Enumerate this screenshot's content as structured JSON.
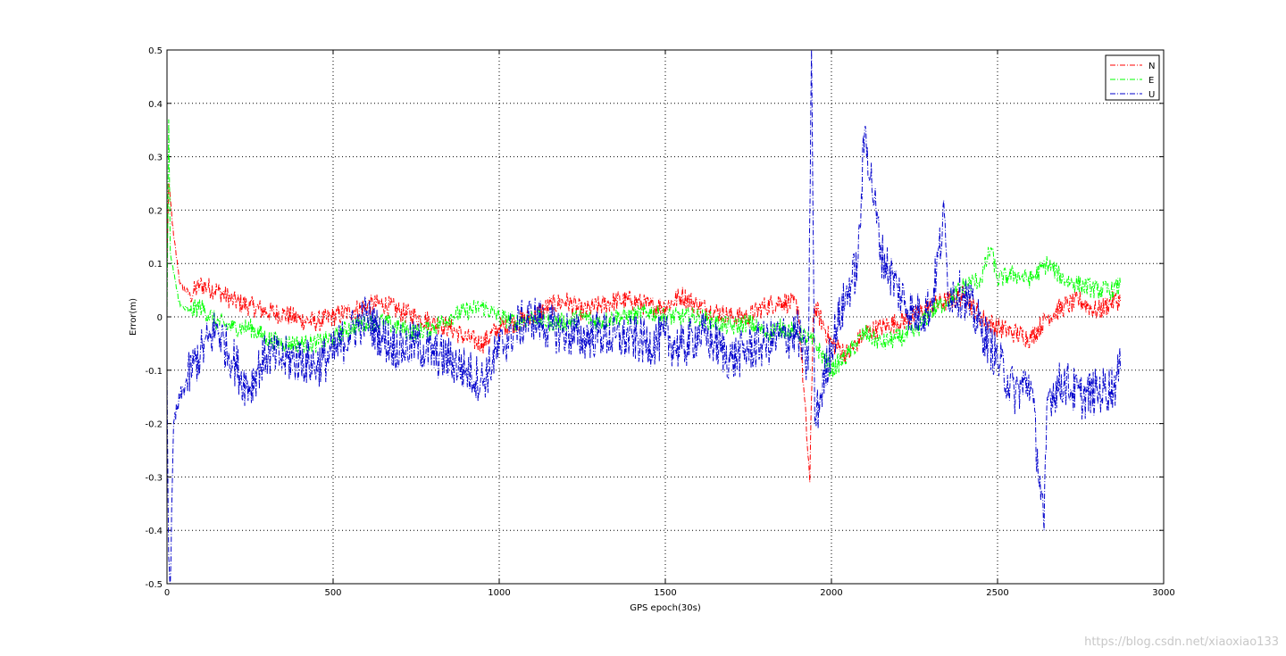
{
  "chart_data": {
    "type": "line",
    "title": "",
    "xlabel": "GPS epoch(30s)",
    "ylabel": "Error(m)",
    "xlim": [
      0,
      3000
    ],
    "ylim": [
      -0.5,
      0.5
    ],
    "xticks": [
      0,
      500,
      1000,
      1500,
      2000,
      2500,
      3000
    ],
    "yticks": [
      0.5,
      0.4,
      0.3,
      0.2,
      0.1,
      0,
      -0.1,
      -0.2,
      -0.3,
      -0.4,
      -0.5
    ],
    "ytick_labels": [
      "0.5",
      "0.4",
      "0.3",
      "0.2",
      "0.1",
      "0",
      "-0.1",
      "-0.2",
      "-0.3",
      "-0.4",
      "-0.5"
    ],
    "grid": true,
    "legend_position": "top-right",
    "line_style": "dash-dot",
    "series": [
      {
        "name": "N",
        "color": "#ff0000",
        "x": [
          0,
          5,
          10,
          20,
          40,
          70,
          100,
          150,
          200,
          250,
          300,
          350,
          400,
          450,
          500,
          550,
          600,
          650,
          700,
          750,
          800,
          850,
          900,
          950,
          1000,
          1050,
          1100,
          1150,
          1200,
          1250,
          1300,
          1350,
          1400,
          1450,
          1500,
          1550,
          1600,
          1650,
          1700,
          1750,
          1800,
          1850,
          1900,
          1935,
          1945,
          1950,
          2000,
          2050,
          2100,
          2150,
          2200,
          2250,
          2300,
          2350,
          2400,
          2450,
          2500,
          2550,
          2600,
          2650,
          2700,
          2750,
          2800,
          2850,
          2870
        ],
        "y": [
          0.1,
          0.25,
          0.22,
          0.15,
          0.06,
          0.04,
          0.06,
          0.05,
          0.03,
          0.02,
          0.01,
          0.005,
          -0.005,
          -0.01,
          0.0,
          0.01,
          0.02,
          0.025,
          0.01,
          0.0,
          -0.01,
          -0.02,
          -0.04,
          -0.05,
          -0.02,
          -0.01,
          0.0,
          0.02,
          0.03,
          0.01,
          0.02,
          0.03,
          0.03,
          0.02,
          0.02,
          0.04,
          0.02,
          0.01,
          0.0,
          0.0,
          0.02,
          0.03,
          0.02,
          -0.31,
          0.0,
          0.02,
          -0.05,
          -0.07,
          -0.03,
          -0.02,
          -0.01,
          0.0,
          0.02,
          0.03,
          0.04,
          0.0,
          -0.02,
          -0.03,
          -0.04,
          0.0,
          0.02,
          0.03,
          0.01,
          0.03,
          0.03
        ]
      },
      {
        "name": "E",
        "color": "#00ff00",
        "x": [
          0,
          5,
          10,
          20,
          40,
          70,
          100,
          150,
          200,
          250,
          300,
          350,
          400,
          450,
          500,
          550,
          600,
          650,
          700,
          750,
          800,
          850,
          900,
          950,
          1000,
          1050,
          1100,
          1150,
          1200,
          1250,
          1300,
          1350,
          1400,
          1450,
          1500,
          1550,
          1600,
          1650,
          1700,
          1750,
          1800,
          1850,
          1900,
          1950,
          2000,
          2050,
          2100,
          2150,
          2200,
          2250,
          2300,
          2350,
          2400,
          2450,
          2480,
          2500,
          2550,
          2600,
          2650,
          2700,
          2750,
          2800,
          2850,
          2870
        ],
        "y": [
          0.0,
          0.37,
          0.12,
          0.08,
          0.02,
          0.01,
          0.02,
          -0.01,
          -0.02,
          -0.02,
          -0.04,
          -0.05,
          -0.05,
          -0.05,
          -0.04,
          -0.02,
          -0.01,
          -0.01,
          -0.02,
          -0.03,
          -0.02,
          0.0,
          0.01,
          0.02,
          0.0,
          -0.01,
          0.0,
          -0.01,
          -0.01,
          0.0,
          -0.01,
          0.0,
          0.0,
          0.01,
          0.0,
          0.0,
          0.0,
          -0.01,
          -0.02,
          -0.01,
          -0.03,
          -0.02,
          -0.03,
          -0.05,
          -0.1,
          -0.07,
          -0.03,
          -0.05,
          -0.04,
          -0.03,
          0.01,
          0.03,
          0.06,
          0.07,
          0.13,
          0.07,
          0.08,
          0.07,
          0.1,
          0.07,
          0.06,
          0.05,
          0.05,
          0.06
        ]
      },
      {
        "name": "U",
        "color": "#0000cc",
        "x": [
          0,
          5,
          10,
          20,
          40,
          60,
          80,
          100,
          130,
          150,
          180,
          200,
          230,
          250,
          280,
          300,
          350,
          400,
          450,
          500,
          550,
          600,
          650,
          700,
          750,
          800,
          850,
          900,
          950,
          1000,
          1050,
          1100,
          1150,
          1200,
          1250,
          1300,
          1350,
          1400,
          1450,
          1500,
          1550,
          1600,
          1650,
          1700,
          1750,
          1800,
          1850,
          1900,
          1930,
          1940,
          1950,
          2000,
          2050,
          2080,
          2100,
          2150,
          2200,
          2250,
          2300,
          2340,
          2350,
          2400,
          2450,
          2500,
          2550,
          2600,
          2640,
          2650,
          2700,
          2750,
          2800,
          2850,
          2870
        ],
        "y": [
          -0.1,
          -0.45,
          -0.5,
          -0.2,
          -0.15,
          -0.12,
          -0.09,
          -0.07,
          -0.04,
          -0.02,
          -0.06,
          -0.08,
          -0.12,
          -0.13,
          -0.09,
          -0.07,
          -0.08,
          -0.08,
          -0.09,
          -0.07,
          -0.03,
          0.0,
          -0.04,
          -0.06,
          -0.05,
          -0.07,
          -0.08,
          -0.1,
          -0.12,
          -0.06,
          -0.02,
          0.0,
          -0.02,
          -0.03,
          -0.04,
          -0.03,
          -0.04,
          -0.04,
          -0.05,
          -0.04,
          -0.06,
          -0.03,
          -0.05,
          -0.08,
          -0.06,
          -0.05,
          -0.04,
          -0.03,
          -0.1,
          0.5,
          -0.2,
          -0.05,
          0.05,
          0.1,
          0.35,
          0.12,
          0.05,
          0.0,
          0.02,
          0.19,
          0.05,
          0.04,
          -0.02,
          -0.08,
          -0.14,
          -0.12,
          -0.4,
          -0.15,
          -0.12,
          -0.15,
          -0.14,
          -0.13,
          -0.1
        ]
      }
    ]
  },
  "watermark": "https://blog.csdn.net/xiaoxiao133"
}
